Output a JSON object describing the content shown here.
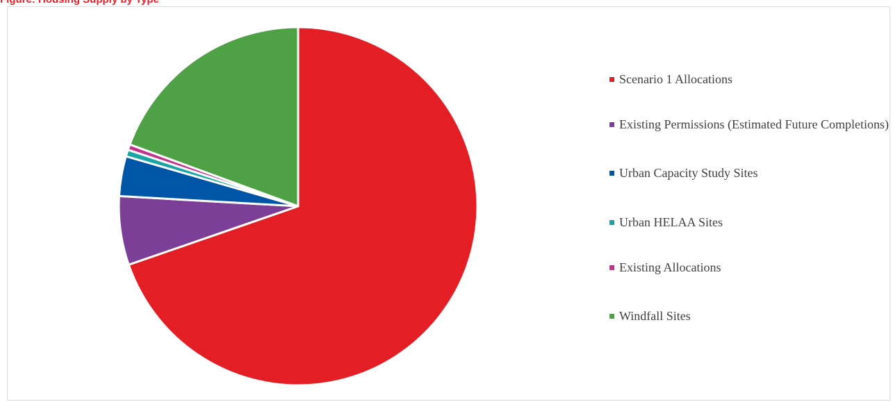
{
  "page": {
    "title": "Figure: Housing Supply by Type"
  },
  "chart_data": {
    "type": "pie",
    "title": "",
    "legend_position": "right",
    "start_angle": "12 o'clock, clockwise",
    "series": [
      {
        "name": "Scenario 1 Allocations",
        "value": 69.7,
        "color": "#e31e24"
      },
      {
        "name": "Existing Permissions (Estimated Future Completions)",
        "value": 6.2,
        "color": "#7b3f98"
      },
      {
        "name": "Urban Capacity Study Sites",
        "value": 3.6,
        "color": "#0056a6"
      },
      {
        "name": "Urban HELAA Sites",
        "value": 0.6,
        "color": "#1aa5a5"
      },
      {
        "name": "Existing Allocations",
        "value": 0.5,
        "color": "#c2328c"
      },
      {
        "name": "Windfall Sites",
        "value": 19.4,
        "color": "#4fa146"
      }
    ]
  }
}
